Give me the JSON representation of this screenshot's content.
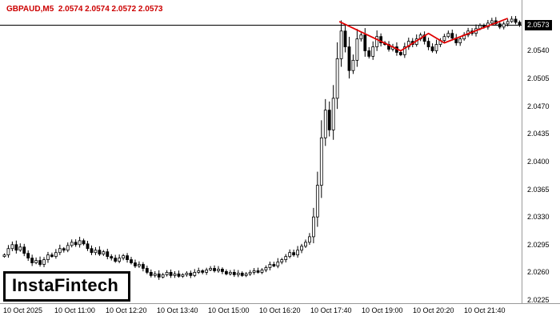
{
  "header": {
    "title": "GBPAUD,M5  2.0574 2.0574 2.0572 2.0573",
    "color": "#cc0000"
  },
  "logo": {
    "text": "InstaFintech"
  },
  "chart_data": {
    "type": "candlestick",
    "symbol": "GBPAUD",
    "timeframe": "M5",
    "quote": {
      "open": "2.0574",
      "high": "2.0574",
      "low": "2.0572",
      "close": "2.0573"
    },
    "current_price": 2.0573,
    "grid": "off",
    "background": "#ffffff",
    "candle_up_fill": "#ffffff",
    "candle_down_fill": "#000000",
    "candle_stroke": "#000000",
    "price_line_color": "#000000",
    "y_axis": {
      "min": 2.0222,
      "max": 2.0586,
      "ticks": [
        2.054,
        2.0505,
        2.047,
        2.0435,
        2.04,
        2.0365,
        2.033,
        2.0295,
        2.026,
        2.0225
      ],
      "current_label": "2.0573"
    },
    "x_axis": {
      "labels": [
        "10 Oct 2025",
        "10 Oct 11:00",
        "10 Oct 12:20",
        "10 Oct 13:40",
        "10 Oct 15:00",
        "10 Oct 16:20",
        "10 Oct 17:40",
        "10 Oct 19:00",
        "10 Oct 20:20",
        "10 Oct 21:40"
      ]
    },
    "first_open": 2.028,
    "closes": [
      2.0282,
      2.029,
      2.0295,
      2.0288,
      2.0292,
      2.0284,
      2.0278,
      2.0272,
      2.0275,
      2.027,
      2.0276,
      2.0282,
      2.028,
      2.0285,
      2.029,
      2.0288,
      2.0294,
      2.0298,
      2.0295,
      2.03,
      2.0296,
      2.029,
      2.0285,
      2.0288,
      2.0283,
      2.0286,
      2.028,
      2.0278,
      2.0274,
      2.0278,
      2.0281,
      2.0276,
      2.0272,
      2.0268,
      2.027,
      2.0265,
      2.026,
      2.0256,
      2.0258,
      2.0254,
      2.0257,
      2.026,
      2.0256,
      2.0258,
      2.0255,
      2.0257,
      2.0259,
      2.0256,
      2.026,
      2.0262,
      2.026,
      2.0263,
      2.0265,
      2.0262,
      2.0264,
      2.0261,
      2.0258,
      2.026,
      2.0257,
      2.0259,
      2.0256,
      2.0258,
      2.026,
      2.0262,
      2.026,
      2.0263,
      2.0266,
      2.027,
      2.0268,
      2.0273,
      2.0276,
      2.028,
      2.0285,
      2.0282,
      2.0288,
      2.0293,
      2.0298,
      2.0305,
      2.033,
      2.037,
      2.043,
      2.0465,
      2.044,
      2.048,
      2.053,
      2.0565,
      2.0545,
      2.0515,
      2.0528,
      2.0555,
      2.056,
      2.054,
      2.0533,
      2.0545,
      2.0558,
      2.055,
      2.0548,
      2.0542,
      2.0545,
      2.0538,
      2.0535,
      2.0545,
      2.0552,
      2.0548,
      2.0555,
      2.056,
      2.0552,
      2.0545,
      2.054,
      2.0548,
      2.0553,
      2.0558,
      2.0562,
      2.0556,
      2.055,
      2.0555,
      2.056,
      2.0565,
      2.0562,
      2.0568,
      2.0572,
      2.057,
      2.0575,
      2.0578,
      2.0574,
      2.057,
      2.0574,
      2.0577,
      2.058,
      2.0576,
      2.0573
    ],
    "trendline": {
      "color": "#e00000",
      "points": [
        [
          84.5,
          2.0577
        ],
        [
          100,
          2.054
        ],
        [
          107,
          2.0562
        ],
        [
          111,
          2.055
        ],
        [
          127,
          2.0581
        ]
      ]
    }
  }
}
